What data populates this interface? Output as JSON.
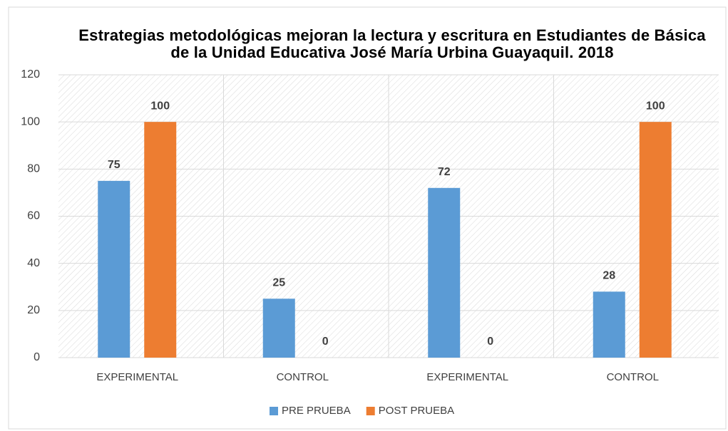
{
  "chart_data": {
    "type": "bar",
    "title": "Estrategias metodológicas mejoran la lectura y escritura en Estudiantes de Básica de la Unidad Educativa José María Urbina Guayaquil. 2018",
    "categories": [
      "EXPERIMENTAL",
      "CONTROL",
      "EXPERIMENTAL",
      "CONTROL"
    ],
    "series": [
      {
        "name": "PRE PRUEBA",
        "color": "#5b9bd5",
        "values": [
          75,
          25,
          72,
          28
        ]
      },
      {
        "name": "POST PRUEBA",
        "color": "#ed7d31",
        "values": [
          100,
          0,
          0,
          100
        ]
      }
    ],
    "ylim": [
      0,
      120
    ],
    "yticks": [
      0,
      20,
      40,
      60,
      80,
      100,
      120
    ],
    "grid": true,
    "legend": "bottom"
  }
}
